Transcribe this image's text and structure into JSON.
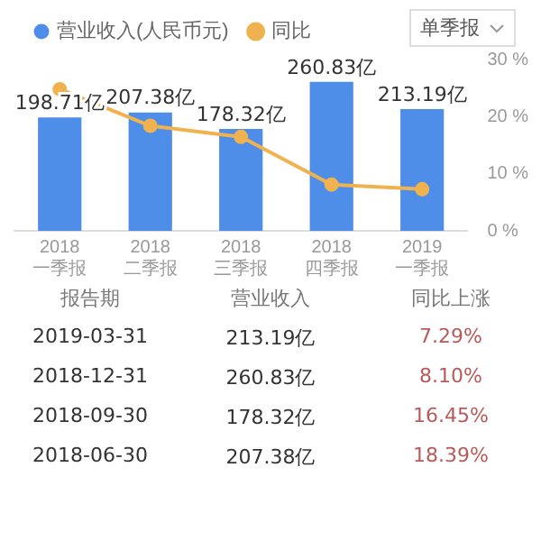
{
  "chart_data": {
    "type": "bar",
    "categories": [
      "2018\n一季报",
      "2018\n二季报",
      "2018\n三季报",
      "2018\n四季报",
      "2019\n一季报"
    ],
    "series": [
      {
        "name": "营业收入(人民币元)",
        "color": "#4f8ee8",
        "values": [
          198.71,
          207.38,
          178.32,
          260.83,
          213.19
        ],
        "value_labels": [
          "198.71亿",
          "207.38亿",
          "178.32亿",
          "260.83亿",
          "213.19亿"
        ]
      },
      {
        "name": "同比",
        "type": "line",
        "axis": "y2",
        "color": "#f0b24f",
        "values": [
          24.8,
          18.39,
          16.45,
          8.1,
          7.29
        ]
      }
    ],
    "y2lim": [
      0,
      30
    ],
    "y2ticks": [
      {
        "value": 0,
        "label": "0 %"
      },
      {
        "value": 10,
        "label": "10 %"
      },
      {
        "value": 20,
        "label": "20 %"
      },
      {
        "value": 30,
        "label": "30 %"
      }
    ],
    "legend": "top left",
    "grid": false,
    "marker": "circle",
    "annotations": [
      "单季报",
      "报告期",
      "营业收入",
      "同比上涨",
      "2019-03-31",
      "213.19亿",
      "7.29%",
      "2018-12-31",
      "260.83亿",
      "8.10%",
      "2018-09-30",
      "178.32亿",
      "16.45%",
      "2018-06-30",
      "207.38亿",
      "18.39%"
    ]
  }
}
